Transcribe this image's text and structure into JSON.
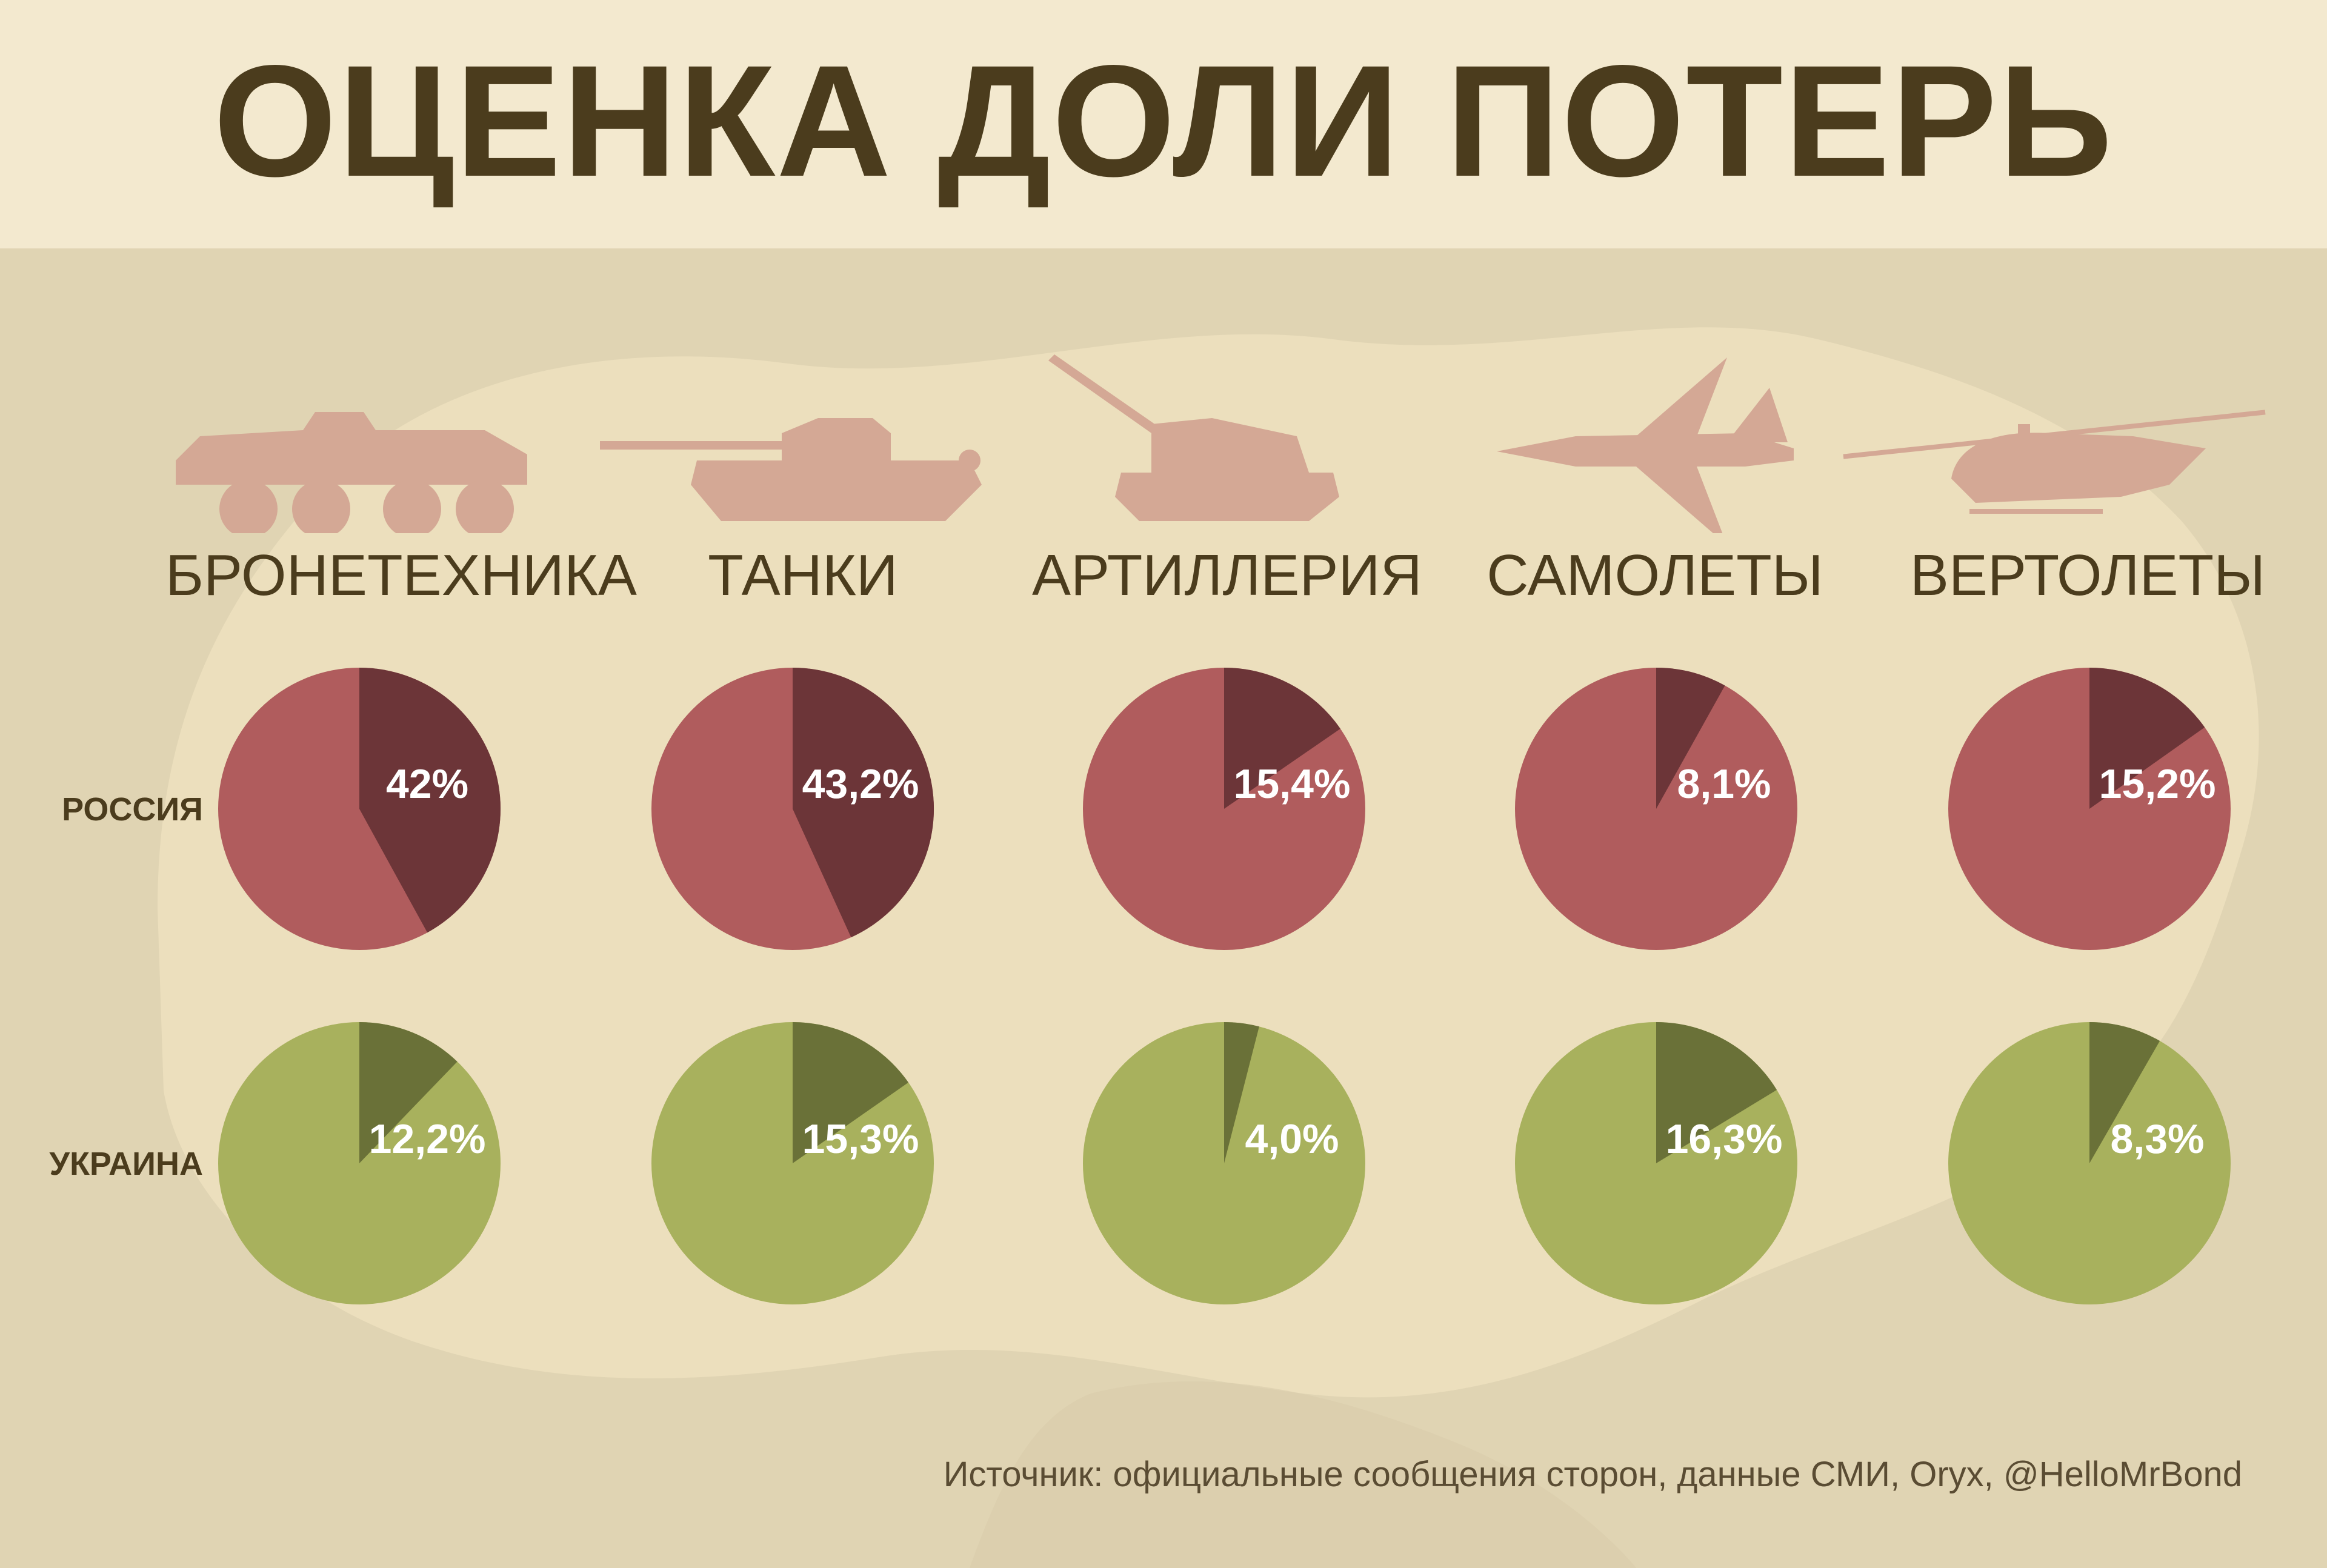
{
  "title": "ОЦЕНКА ДОЛИ ПОТЕРЬ",
  "source": "Источник: официальные сообщения сторон, данные СМИ, Oryx, @HelloMrBond",
  "colors": {
    "background": "#e0d4b3",
    "header_bg": "#f3e9cf",
    "title": "#4b3c1d",
    "russia_pie": "#b05c5d",
    "russia_slice": "#6c3538",
    "ukraine_pie": "#a8b15d",
    "ukraine_slice": "#6a7138",
    "vehicle_icon": "#d4a895",
    "label_text": "#ffffff"
  },
  "vehicle_icons": [
    "armored-vehicle-icon",
    "tank-icon",
    "artillery-icon",
    "airplane-icon",
    "helicopter-icon"
  ],
  "chart_data": {
    "type": "pie",
    "categories": [
      "БРОНЕТЕХНИКА",
      "ТАНКИ",
      "АРТИЛЛЕРИЯ",
      "САМОЛЕТЫ",
      "ВЕРТОЛЕТЫ"
    ],
    "series": [
      {
        "name": "РОССИЯ",
        "values": [
          42,
          43.2,
          15.4,
          8.1,
          15.2
        ],
        "labels": [
          "42%",
          "43,2%",
          "15,4%",
          "8,1%",
          "15,2%"
        ]
      },
      {
        "name": "УКРАИНА",
        "values": [
          12.2,
          15.3,
          4.0,
          16.3,
          8.3
        ],
        "labels": [
          "12,2%",
          "15,3%",
          "4,0%",
          "16,3%",
          "8,3%"
        ]
      }
    ]
  }
}
